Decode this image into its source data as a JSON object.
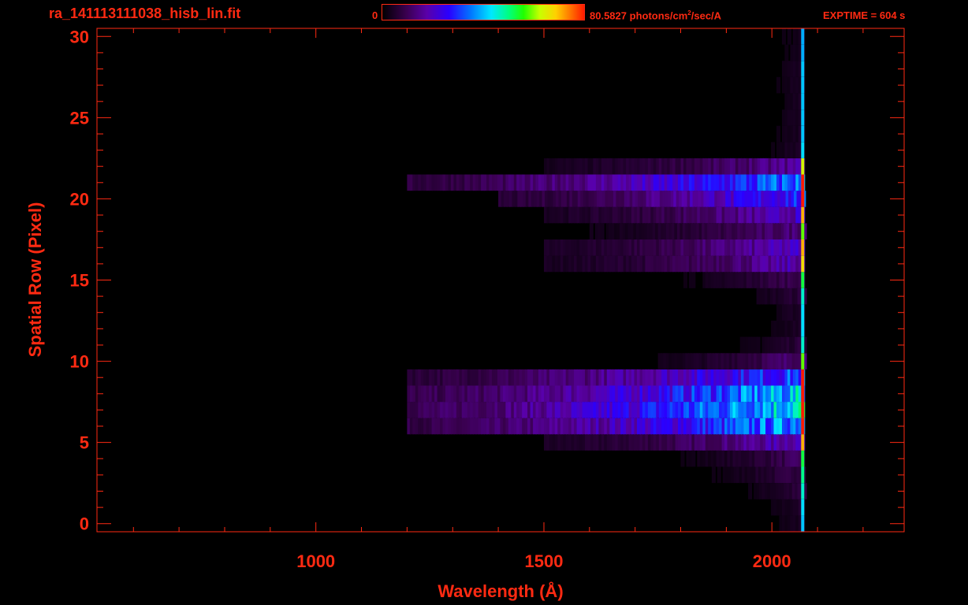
{
  "header": {
    "filename": "ra_141113111038_hisb_lin.fit",
    "colorbar_min": "0",
    "colorbar_max_value": "80.5827",
    "colorbar_unit_pre": "photons/cm",
    "colorbar_unit_sup": "2",
    "colorbar_unit_post": "/sec/A",
    "exptime": "EXPTIME = 604 s"
  },
  "colors": {
    "axis": "#ff2a12",
    "background": "#000000"
  },
  "chart_data": {
    "type": "heatmap",
    "xlabel": "Wavelength (Å)",
    "ylabel": "Spatial Row (Pixel)",
    "xlim": [
      520,
      2290
    ],
    "ylim": [
      -0.5,
      30.5
    ],
    "xticks": [
      1000,
      1500,
      2000
    ],
    "yticks": [
      0,
      5,
      10,
      15,
      20,
      25,
      30
    ],
    "zlim": [
      0,
      80.5827
    ],
    "zunit": "photons/cm^2/sec/A",
    "rows": [
      {
        "row": 0,
        "start": 1950,
        "peak": 2070,
        "level": 0.05
      },
      {
        "row": 1,
        "start": 1950,
        "peak": 2070,
        "level": 0.06
      },
      {
        "row": 2,
        "start": 1900,
        "peak": 2070,
        "level": 0.08
      },
      {
        "row": 3,
        "start": 1850,
        "peak": 2070,
        "level": 0.1
      },
      {
        "row": 4,
        "start": 1800,
        "peak": 2070,
        "level": 0.12
      },
      {
        "row": 5,
        "start": 1500,
        "peak": 2070,
        "level": 0.22
      },
      {
        "row": 6,
        "start": 1200,
        "peak": 2070,
        "level": 0.42
      },
      {
        "row": 7,
        "start": 1200,
        "peak": 2070,
        "level": 0.5
      },
      {
        "row": 8,
        "start": 1200,
        "peak": 2070,
        "level": 0.45
      },
      {
        "row": 9,
        "start": 1200,
        "peak": 2070,
        "level": 0.35
      },
      {
        "row": 10,
        "start": 1750,
        "peak": 2070,
        "level": 0.15
      },
      {
        "row": 11,
        "start": 1900,
        "peak": 2070,
        "level": 0.08
      },
      {
        "row": 12,
        "start": 1950,
        "peak": 2070,
        "level": 0.06
      },
      {
        "row": 13,
        "start": 1950,
        "peak": 2070,
        "level": 0.06
      },
      {
        "row": 14,
        "start": 1900,
        "peak": 2070,
        "level": 0.08
      },
      {
        "row": 15,
        "start": 1800,
        "peak": 2070,
        "level": 0.12
      },
      {
        "row": 16,
        "start": 1500,
        "peak": 2070,
        "level": 0.2
      },
      {
        "row": 17,
        "start": 1500,
        "peak": 2070,
        "level": 0.22
      },
      {
        "row": 18,
        "start": 1600,
        "peak": 2070,
        "level": 0.15
      },
      {
        "row": 19,
        "start": 1500,
        "peak": 2070,
        "level": 0.22
      },
      {
        "row": 20,
        "start": 1400,
        "peak": 2070,
        "level": 0.32
      },
      {
        "row": 21,
        "start": 1200,
        "peak": 2070,
        "level": 0.38
      },
      {
        "row": 22,
        "start": 1500,
        "peak": 2070,
        "level": 0.18
      },
      {
        "row": 23,
        "start": 1950,
        "peak": 2070,
        "level": 0.06
      },
      {
        "row": 24,
        "start": 1950,
        "peak": 2070,
        "level": 0.05
      },
      {
        "row": 25,
        "start": 1950,
        "peak": 2070,
        "level": 0.05
      },
      {
        "row": 26,
        "start": 1950,
        "peak": 2070,
        "level": 0.05
      },
      {
        "row": 27,
        "start": 1950,
        "peak": 2070,
        "level": 0.05
      },
      {
        "row": 28,
        "start": 1950,
        "peak": 2070,
        "level": 0.05
      },
      {
        "row": 29,
        "start": 1950,
        "peak": 2070,
        "level": 0.04
      },
      {
        "row": 30,
        "start": 1950,
        "peak": 2070,
        "level": 0.04
      }
    ]
  }
}
